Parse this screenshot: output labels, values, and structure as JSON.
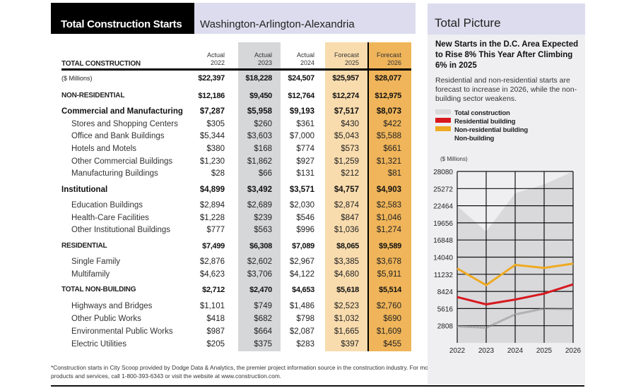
{
  "title": {
    "main": "Total Construction Starts",
    "region": "Washington-Arlington-Alexandria"
  },
  "table": {
    "header_label": "TOTAL CONSTRUCTION",
    "columns": [
      {
        "kind": "Actual",
        "year": "2022"
      },
      {
        "kind": "Actual",
        "year": "2023"
      },
      {
        "kind": "Actual",
        "year": "2024"
      },
      {
        "kind": "Forecast",
        "year": "2025"
      },
      {
        "kind": "Forecast",
        "year": "2026"
      }
    ],
    "rows": [
      {
        "label": "($ Millions)",
        "style": "note",
        "values": [
          "$22,397",
          "$18,228",
          "$24,507",
          "$25,957",
          "$28,077"
        ]
      },
      {
        "label": "NON-RESIDENTIAL",
        "style": "cap",
        "values": [
          "$12,186",
          "$9,450",
          "$12,764",
          "$12,274",
          "$12,975"
        ]
      },
      {
        "label": "Commercial and Manufacturing",
        "style": "bold",
        "values": [
          "$7,287",
          "$5,958",
          "$9,193",
          "$7,517",
          "$8,073"
        ]
      },
      {
        "label": "Stores and Shopping Centers",
        "style": "sub",
        "values": [
          "$305",
          "$260",
          "$361",
          "$430",
          "$422"
        ]
      },
      {
        "label": "Office and Bank Buildings",
        "style": "sub",
        "values": [
          "$5,344",
          "$3,603",
          "$7,000",
          "$5,043",
          "$5,588"
        ]
      },
      {
        "label": "Hotels and Motels",
        "style": "sub",
        "values": [
          "$380",
          "$168",
          "$774",
          "$573",
          "$661"
        ]
      },
      {
        "label": "Other Commercial Buildings",
        "style": "sub",
        "values": [
          "$1,230",
          "$1,862",
          "$927",
          "$1,259",
          "$1,321"
        ]
      },
      {
        "label": "Manufacturing Buildings",
        "style": "sub",
        "values": [
          "$28",
          "$66",
          "$131",
          "$212",
          "$81"
        ]
      },
      {
        "label": "Institutional",
        "style": "bold",
        "values": [
          "$4,899",
          "$3,492",
          "$3,571",
          "$4,757",
          "$4,903"
        ]
      },
      {
        "label": "Education Buildings",
        "style": "sub",
        "values": [
          "$2,894",
          "$2,689",
          "$2,030",
          "$2,874",
          "$2,583"
        ]
      },
      {
        "label": "Health-Care Facilities",
        "style": "sub",
        "values": [
          "$1,228",
          "$239",
          "$546",
          "$847",
          "$1,046"
        ]
      },
      {
        "label": "Other Institutional Buildings",
        "style": "sub",
        "values": [
          "$777",
          "$563",
          "$996",
          "$1,036",
          "$1,274"
        ]
      },
      {
        "label": "RESIDENTIAL",
        "style": "cap",
        "values": [
          "$7,499",
          "$6,308",
          "$7,089",
          "$8,065",
          "$9,589"
        ]
      },
      {
        "label": "Single Family",
        "style": "sub",
        "values": [
          "$2,876",
          "$2,602",
          "$2,967",
          "$3,385",
          "$3,678"
        ]
      },
      {
        "label": "Multifamily",
        "style": "sub",
        "values": [
          "$4,623",
          "$3,706",
          "$4,122",
          "$4,680",
          "$5,911"
        ]
      },
      {
        "label": "TOTAL NON-BUILDING",
        "style": "cap",
        "values": [
          "$2,712",
          "$2,470",
          "$4,653",
          "$5,618",
          "$5,514"
        ]
      },
      {
        "label": "Highways and Bridges",
        "style": "sub",
        "values": [
          "$1,101",
          "$749",
          "$1,486",
          "$2,523",
          "$2,760"
        ]
      },
      {
        "label": "Other Public Works",
        "style": "sub",
        "values": [
          "$418",
          "$682",
          "$798",
          "$1,032",
          "$690"
        ]
      },
      {
        "label": "Environmental Public Works",
        "style": "sub",
        "values": [
          "$987",
          "$664",
          "$2,087",
          "$1,665",
          "$1,609"
        ]
      },
      {
        "label": "Electric Utilities",
        "style": "sub",
        "values": [
          "$205",
          "$375",
          "$283",
          "$397",
          "$455"
        ]
      }
    ]
  },
  "footer": "*Construction starts in City Scoop provided by Dodge Data & Analytics, the premier project information source in the construction industry. For more construction starts or general information on Dodge products and services, call 1-800-393-6343 or visit the website at www.construction.com.",
  "panel": {
    "title": "Total Picture",
    "headline": "New Starts in the D.C. Area Expected to Rise 8% This Year After Climbing 6% in 2025",
    "subtext": "Residential and non-residential starts are forecast to increase in 2026, while the non-building sector weakens."
  },
  "colors": {
    "total": "#d9d9dc",
    "residential": "#d7191f",
    "nonresidential": "#eeaa22",
    "nonbuilding": "#999999"
  },
  "chart_data": {
    "type": "line",
    "ylabel": "($ Millions)",
    "x": [
      "2022",
      "2023",
      "2024",
      "2025",
      "2026"
    ],
    "ylim": [
      0,
      28080
    ],
    "yticks": [
      "28080",
      "25272",
      "22464",
      "19656",
      "16848",
      "14040",
      "11232",
      "8424",
      "5616",
      "2808"
    ],
    "grid": true,
    "legend_position": "top",
    "series": [
      {
        "name": "Total construction",
        "style": "area",
        "values": [
          22397,
          18228,
          24507,
          25957,
          28077
        ]
      },
      {
        "name": "Residential building",
        "style": "line",
        "values": [
          7499,
          6308,
          7089,
          8065,
          9589
        ]
      },
      {
        "name": "Non-residential building",
        "style": "line",
        "values": [
          12186,
          9450,
          12764,
          12274,
          12975
        ]
      },
      {
        "name": "Non-building",
        "style": "dotted",
        "values": [
          2712,
          2470,
          4653,
          5618,
          5514
        ]
      }
    ]
  }
}
